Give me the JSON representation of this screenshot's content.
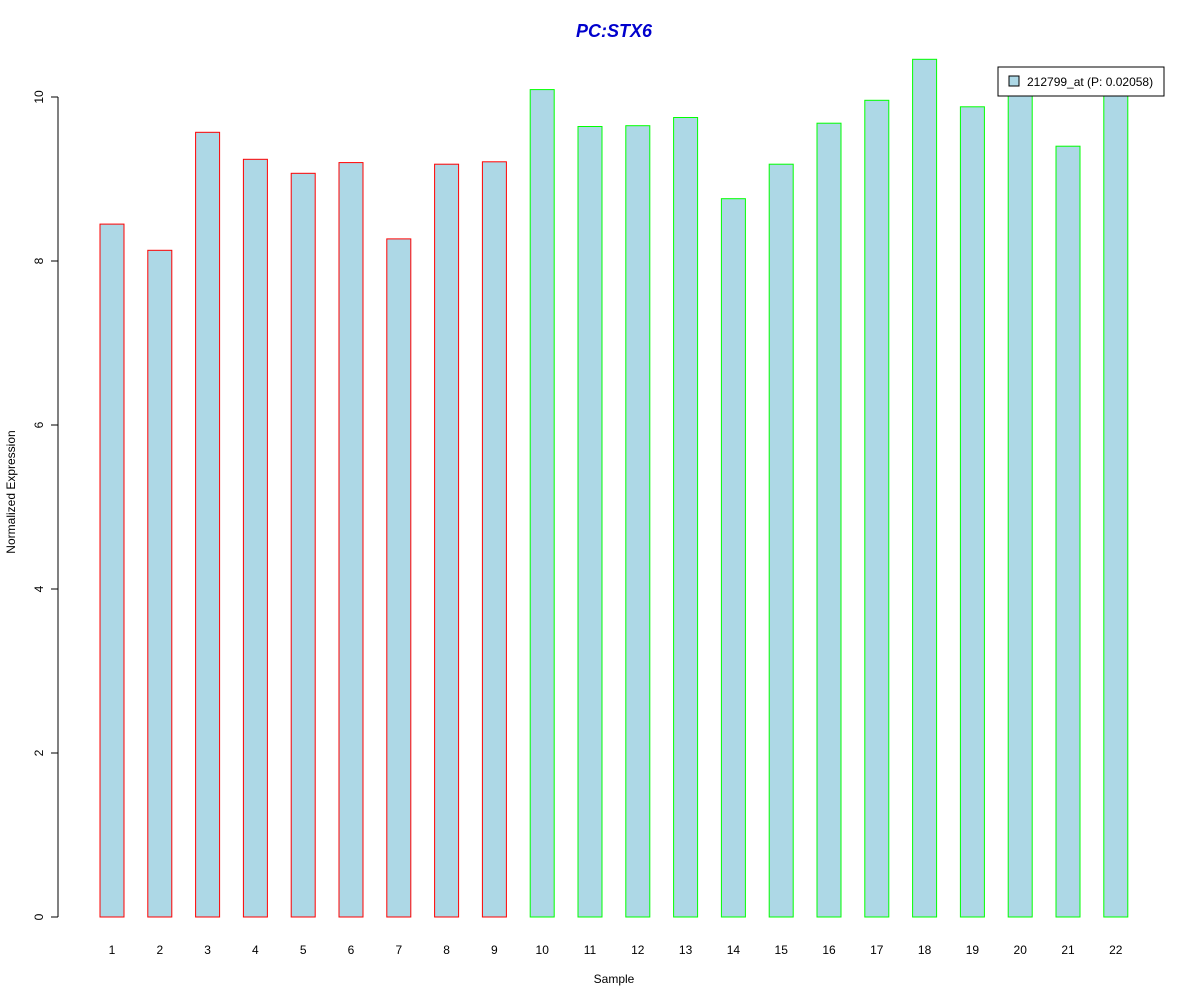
{
  "chart_data": {
    "type": "bar",
    "title": "PC:STX6",
    "xlabel": "Sample",
    "ylabel": "Normalized Expression",
    "ylim": [
      0,
      10.5
    ],
    "yticks": [
      0,
      2,
      4,
      6,
      8,
      10
    ],
    "categories": [
      "1",
      "2",
      "3",
      "4",
      "5",
      "6",
      "7",
      "8",
      "9",
      "10",
      "11",
      "12",
      "13",
      "14",
      "15",
      "16",
      "17",
      "18",
      "19",
      "20",
      "21",
      "22"
    ],
    "series": [
      {
        "name": "212799_at (P: 0.02058)",
        "values": [
          8.45,
          8.13,
          9.57,
          9.24,
          9.07,
          9.2,
          8.27,
          9.18,
          9.21,
          10.09,
          9.64,
          9.65,
          9.75,
          8.76,
          9.18,
          9.68,
          9.96,
          10.46,
          9.88,
          10.1,
          9.4,
          10.1
        ]
      }
    ],
    "bar_groups": [
      "red",
      "red",
      "red",
      "red",
      "red",
      "red",
      "red",
      "red",
      "red",
      "green",
      "green",
      "green",
      "green",
      "green",
      "green",
      "green",
      "green",
      "green",
      "green",
      "green",
      "green",
      "green"
    ],
    "grid": false,
    "legend_position": "top-right",
    "colors": {
      "bar_fill": "#add8e6",
      "group_border_red": "#ff0000",
      "group_border_green": "#00ff00",
      "title": "#0000cd",
      "axis": "#000000"
    }
  }
}
